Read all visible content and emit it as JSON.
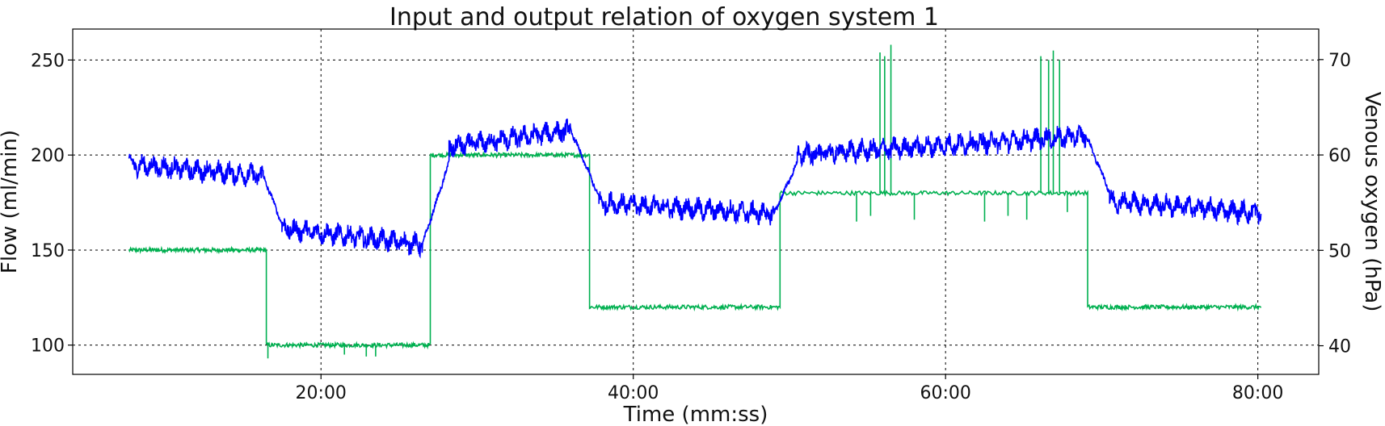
{
  "chart_data": {
    "type": "line",
    "title": "Input and output relation of oxygen system 1",
    "xlabel": "Time (mm:ss)",
    "ylabel": "Flow (ml/min)",
    "y2label": "Venous oxygen (hPa)",
    "xlim": [
      4.1,
      83.9
    ],
    "ylim": [
      84.6,
      266.3
    ],
    "y2lim": [
      37.0,
      73.2
    ],
    "x_ticks": [
      20,
      40,
      60,
      80
    ],
    "x_tick_labels": [
      "20:00",
      "40:00",
      "60:00",
      "80:00"
    ],
    "y_ticks": [
      100,
      150,
      200,
      250
    ],
    "y_tick_labels": [
      "100",
      "150",
      "200",
      "250"
    ],
    "y2_ticks": [
      40,
      50,
      60,
      70
    ],
    "y2_tick_labels": [
      "40",
      "50",
      "60",
      "70"
    ],
    "grid": true,
    "legend": "none",
    "series": [
      {
        "axis": "left",
        "color": "#00b050",
        "steps": [
          {
            "x": [
              7.7,
              16.5
            ],
            "y": 150
          },
          {
            "x": [
              16.5,
              27.0
            ],
            "y": 100
          },
          {
            "x": [
              27.0,
              37.2
            ],
            "y": 200
          },
          {
            "x": [
              37.2,
              49.4
            ],
            "y": 120
          },
          {
            "x": [
              49.4,
              69.1
            ],
            "y": 180
          },
          {
            "x": [
              69.1,
              80.2
            ],
            "y": 120
          }
        ],
        "spikes": [
          {
            "x": 16.6,
            "y": 93
          },
          {
            "x": 21.5,
            "y": 95
          },
          {
            "x": 22.9,
            "y": 94
          },
          {
            "x": 23.5,
            "y": 94
          },
          {
            "x": 55.8,
            "y": 254
          },
          {
            "x": 56.1,
            "y": 252
          },
          {
            "x": 56.5,
            "y": 258
          },
          {
            "x": 66.1,
            "y": 252
          },
          {
            "x": 66.6,
            "y": 250
          },
          {
            "x": 66.9,
            "y": 255
          },
          {
            "x": 67.3,
            "y": 250
          },
          {
            "x": 54.3,
            "y": 165
          },
          {
            "x": 55.2,
            "y": 168
          },
          {
            "x": 58.0,
            "y": 166
          },
          {
            "x": 62.5,
            "y": 165
          },
          {
            "x": 64.0,
            "y": 168
          },
          {
            "x": 65.2,
            "y": 166
          },
          {
            "x": 67.8,
            "y": 170
          }
        ]
      },
      {
        "axis": "right",
        "color": "#0000ff",
        "segments": [
          {
            "x": [
              7.7,
              16.3
            ],
            "y": [
              59.0,
              57.8
            ]
          },
          {
            "x": [
              16.3,
              17.5
            ],
            "y": [
              57.8,
              52.8
            ]
          },
          {
            "x": [
              17.5,
              26.5
            ],
            "y": [
              52.3,
              50.6
            ]
          },
          {
            "x": [
              26.5,
              28.2
            ],
            "y": [
              50.6,
              59.2
            ]
          },
          {
            "x": [
              28.2,
              36.0
            ],
            "y": [
              60.8,
              62.6
            ]
          },
          {
            "x": [
              36.0,
              37.8
            ],
            "y": [
              62.6,
              55.6
            ]
          },
          {
            "x": [
              37.8,
              49.0
            ],
            "y": [
              55.0,
              53.8
            ]
          },
          {
            "x": [
              49.0,
              50.5
            ],
            "y": [
              53.8,
              59.2
            ]
          },
          {
            "x": [
              50.5,
              69.0
            ],
            "y": [
              60.0,
              62.0
            ]
          },
          {
            "x": [
              69.0,
              70.5
            ],
            "y": [
              62.0,
              56.2
            ]
          },
          {
            "x": [
              70.5,
              80.2
            ],
            "y": [
              55.2,
              53.9
            ]
          }
        ],
        "noise_amplitude": 1.6
      }
    ]
  }
}
